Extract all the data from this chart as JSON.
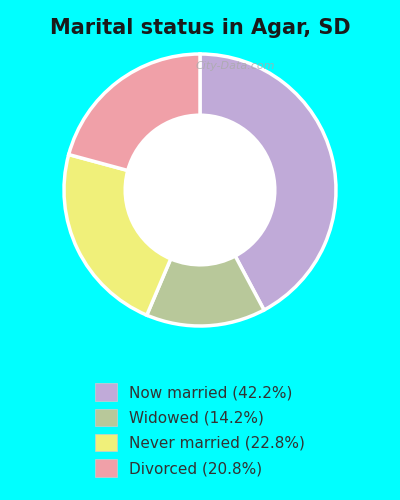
{
  "title": "Marital status in Agar, SD",
  "title_fontsize": 15,
  "title_fontweight": "bold",
  "background_color": "#c8ede8",
  "chart_bg_color": "#d8f0e8",
  "outer_bg_color": "#00ffff",
  "slices": [
    {
      "label": "Now married (42.2%)",
      "value": 42.2,
      "color": "#c0aad8"
    },
    {
      "label": "Widowed (14.2%)",
      "value": 14.2,
      "color": "#b8c89a"
    },
    {
      "label": "Never married (22.8%)",
      "value": 22.8,
      "color": "#f0f07a"
    },
    {
      "label": "Divorced (20.8%)",
      "value": 20.8,
      "color": "#f0a0a8"
    }
  ],
  "legend_fontsize": 11,
  "watermark": "City-Data.com",
  "figsize": [
    4.0,
    5.0
  ],
  "dpi": 100
}
